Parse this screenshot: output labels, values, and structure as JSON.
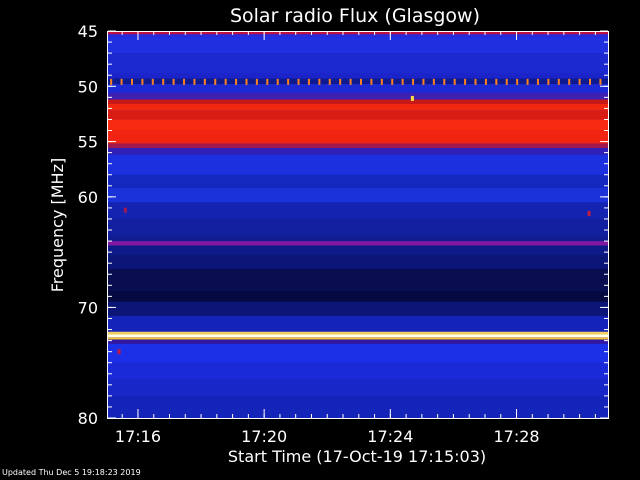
{
  "footer_text": "Updated Thu Dec  5 19:18:23 2019",
  "chart_data": {
    "type": "heatmap",
    "title": "Solar radio Flux (Glasgow)",
    "xlabel": "Start Time (17-Oct-19 17:15:03)",
    "ylabel": "Frequency [MHz]",
    "x_range_minutes_after_17_00": [
      15.05,
      30.9
    ],
    "y_range_mhz": [
      45,
      80
    ],
    "y_axis_inverted": true,
    "x_ticks": [
      {
        "minutes": 16,
        "label": "17:16"
      },
      {
        "minutes": 20,
        "label": "17:20"
      },
      {
        "minutes": 24,
        "label": "17:24"
      },
      {
        "minutes": 28,
        "label": "17:28"
      }
    ],
    "y_ticks": [
      {
        "value": 45,
        "label": "45"
      },
      {
        "value": 50,
        "label": "50"
      },
      {
        "value": 55,
        "label": "55"
      },
      {
        "value": 60,
        "label": "60"
      },
      {
        "value": 70,
        "label": "70"
      },
      {
        "value": 80,
        "label": "80"
      }
    ],
    "background_color": "#1420c8",
    "bands": [
      {
        "from": 45.0,
        "to": 45.3,
        "color": "#c01040"
      },
      {
        "from": 45.3,
        "to": 45.6,
        "color": "#2a2ad8"
      },
      {
        "from": 45.6,
        "to": 47.0,
        "color": "#2030e0"
      },
      {
        "from": 47.0,
        "to": 48.8,
        "color": "#1c28d0"
      },
      {
        "from": 48.8,
        "to": 49.3,
        "color": "#1a24c8"
      },
      {
        "from": 49.3,
        "to": 49.8,
        "color": "#101a90"
      },
      {
        "from": 49.8,
        "to": 50.6,
        "color": "#1c2ad4"
      },
      {
        "from": 50.6,
        "to": 51.2,
        "color": "#4020b0"
      },
      {
        "from": 51.2,
        "to": 51.6,
        "color": "#c81818"
      },
      {
        "from": 51.6,
        "to": 52.2,
        "color": "#f02810"
      },
      {
        "from": 52.2,
        "to": 53.0,
        "color": "#d81c14"
      },
      {
        "from": 53.0,
        "to": 54.0,
        "color": "#f82a10"
      },
      {
        "from": 54.0,
        "to": 55.2,
        "color": "#f02410"
      },
      {
        "from": 55.2,
        "to": 55.6,
        "color": "#a01850"
      },
      {
        "from": 55.6,
        "to": 56.2,
        "color": "#3020b8"
      },
      {
        "from": 56.2,
        "to": 58.0,
        "color": "#1c30e0"
      },
      {
        "from": 58.0,
        "to": 59.2,
        "color": "#1428c0"
      },
      {
        "from": 59.2,
        "to": 60.5,
        "color": "#1a32d8"
      },
      {
        "from": 60.5,
        "to": 62.0,
        "color": "#1424b0"
      },
      {
        "from": 62.0,
        "to": 63.5,
        "color": "#1220a0"
      },
      {
        "from": 63.5,
        "to": 64.0,
        "color": "#101c90"
      },
      {
        "from": 64.0,
        "to": 64.4,
        "color": "#8018a0"
      },
      {
        "from": 64.4,
        "to": 65.2,
        "color": "#0e1a88"
      },
      {
        "from": 65.2,
        "to": 66.5,
        "color": "#0c1678"
      },
      {
        "from": 66.5,
        "to": 68.5,
        "color": "#080e50"
      },
      {
        "from": 68.5,
        "to": 69.5,
        "color": "#060a40"
      },
      {
        "from": 69.5,
        "to": 70.8,
        "color": "#0c1676"
      },
      {
        "from": 70.8,
        "to": 72.2,
        "color": "#1424b8"
      },
      {
        "from": 72.2,
        "to": 72.45,
        "color": "#f0d060"
      },
      {
        "from": 72.45,
        "to": 72.7,
        "color": "#ffffe8"
      },
      {
        "from": 72.7,
        "to": 72.9,
        "color": "#f0c040"
      },
      {
        "from": 72.9,
        "to": 73.3,
        "color": "#3018a0"
      },
      {
        "from": 73.3,
        "to": 75.0,
        "color": "#1c30e8"
      },
      {
        "from": 75.0,
        "to": 76.5,
        "color": "#1a2ad8"
      },
      {
        "from": 76.5,
        "to": 78.0,
        "color": "#1828c8"
      },
      {
        "from": 78.0,
        "to": 80.0,
        "color": "#1424b8"
      }
    ],
    "markers": {
      "frequency_mhz": 49.6,
      "interval_minutes": 0.33,
      "color": "#ff8020"
    },
    "spots": [
      {
        "minutes": 24.7,
        "mhz": 51.1,
        "color": "#ffe040"
      },
      {
        "minutes": 15.4,
        "mhz": 74.0,
        "color": "#c01840"
      },
      {
        "minutes": 15.6,
        "mhz": 61.2,
        "color": "#a01850"
      },
      {
        "minutes": 30.3,
        "mhz": 61.5,
        "color": "#c02040"
      }
    ]
  }
}
